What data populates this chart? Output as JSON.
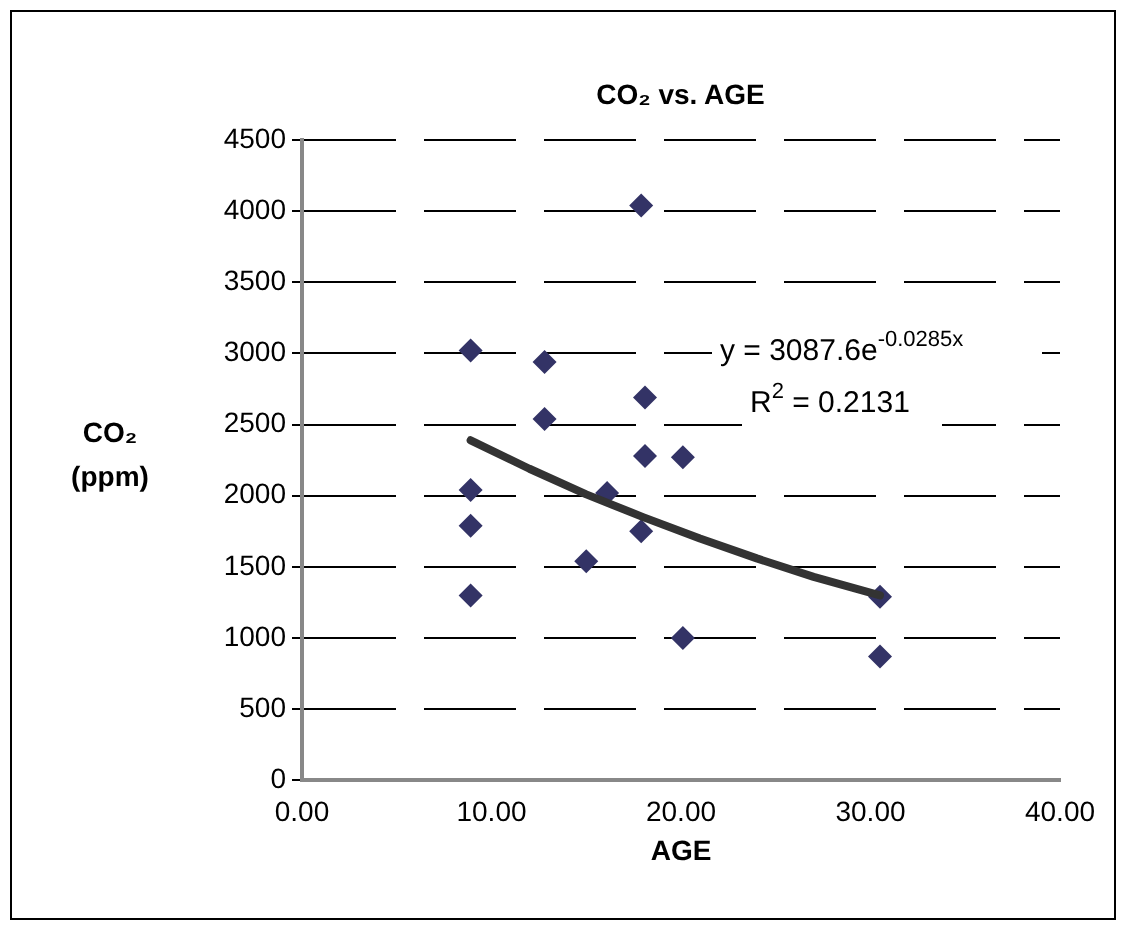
{
  "chart_data": {
    "type": "scatter",
    "title": "CO₂ vs. AGE",
    "xlabel": "AGE",
    "ylabel": "CO₂\n(ppm)",
    "xlim": [
      0,
      40
    ],
    "xticks": [
      {
        "value": 0,
        "label": "0.00"
      },
      {
        "value": 10,
        "label": "10.00"
      },
      {
        "value": 20,
        "label": "20.00"
      },
      {
        "value": 30,
        "label": "30.00"
      },
      {
        "value": 40,
        "label": "40.00"
      }
    ],
    "ylim": [
      0,
      4500
    ],
    "yticks": [
      0,
      500,
      1000,
      1500,
      2000,
      2500,
      3000,
      3500,
      4000,
      4500
    ],
    "grid": "y",
    "legend": false,
    "marker": "diamond",
    "annotations": [
      "y = 3087.6e$^{-0.0285x}$",
      "R$^{2}$ = 0.2131"
    ],
    "series": [
      {
        "type": "scatter",
        "color": "#333366",
        "x": [
          8.9,
          8.9,
          8.9,
          8.9,
          12.8,
          12.8,
          16.1,
          15.0,
          17.9,
          18.1,
          18.1,
          17.9,
          20.1,
          20.1,
          30.5,
          30.5
        ],
        "values": [
          3020,
          2040,
          1790,
          1300,
          2940,
          2540,
          2020,
          1540,
          4040,
          2690,
          2280,
          1750,
          2270,
          1000,
          1290,
          870
        ]
      },
      {
        "type": "line",
        "color": "#333333",
        "marker": "none",
        "line_style": "solid",
        "x": [
          8.9,
          12,
          15,
          18,
          21,
          24,
          27,
          30.5
        ],
        "values": [
          2390,
          2190,
          2010,
          1850,
          1700,
          1560,
          1430,
          1300
        ]
      }
    ]
  }
}
